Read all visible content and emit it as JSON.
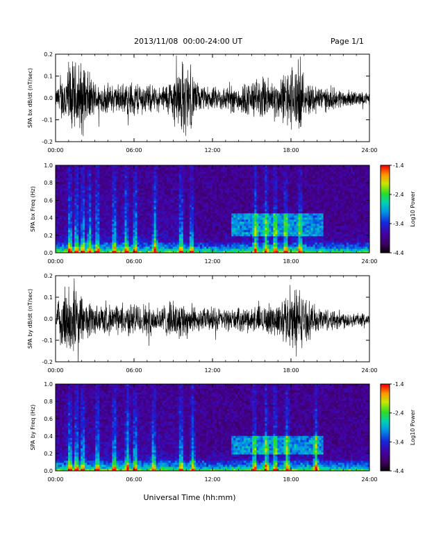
{
  "header": {
    "title": "2013/11/08  00:00-24:00 UT",
    "page": "Page 1/1"
  },
  "xlabel": "Universal Time (hh:mm)",
  "chart_data": [
    {
      "type": "line",
      "ylabel": "SPA bx dB/dt (nT/sec)",
      "xlim": [
        0,
        24
      ],
      "ylim": [
        -0.2,
        0.2
      ],
      "xticklabels": [
        "00:00",
        "06:00",
        "12:00",
        "18:00",
        "24:00"
      ],
      "yticklabels": [
        "-0.2",
        "-0.1",
        "0.0",
        "0.1",
        "0.2"
      ],
      "envelope": {
        "x": [
          0,
          1,
          1.5,
          2,
          3,
          4,
          5,
          6,
          7,
          8,
          9,
          9.5,
          10,
          11,
          12,
          13,
          14,
          15,
          16,
          17,
          18,
          18.5,
          19,
          20,
          21,
          22,
          23,
          24
        ],
        "amplitude": [
          0.04,
          0.2,
          0.2,
          0.2,
          0.09,
          0.08,
          0.08,
          0.1,
          0.08,
          0.06,
          0.12,
          0.2,
          0.2,
          0.07,
          0.06,
          0.07,
          0.08,
          0.1,
          0.12,
          0.1,
          0.18,
          0.2,
          0.1,
          0.08,
          0.06,
          0.05,
          0.04,
          0.03
        ]
      }
    },
    {
      "type": "heatmap",
      "ylabel": "SPA bx Freq (Hz)",
      "xlim": [
        0,
        24
      ],
      "ylim": [
        0,
        1
      ],
      "yticklabels": [
        "0.0",
        "0.2",
        "0.4",
        "0.6",
        "0.8",
        "1.0"
      ],
      "colorbar": {
        "label": "Log10 Power",
        "range": [
          -4.4,
          -1.4
        ],
        "ticks": [
          "-1.4",
          "-2.4",
          "-3.4",
          "-4.4"
        ]
      },
      "bursts": [
        1.1,
        1.6,
        2.1,
        2.6,
        3.2,
        4.5,
        5.4,
        6.1,
        7.6,
        9.6,
        10.4,
        15.3,
        16.1,
        16.8,
        17.6,
        18.7
      ],
      "feature_band": {
        "x": [
          13.5,
          20.5
        ],
        "freq": [
          0.2,
          0.45
        ]
      }
    },
    {
      "type": "line",
      "ylabel": "SPA by dB/dt (nT/sec)",
      "xlim": [
        0,
        24
      ],
      "ylim": [
        -0.2,
        0.2
      ],
      "xticklabels": [
        "00:00",
        "06:00",
        "12:00",
        "18:00",
        "24:00"
      ],
      "yticklabels": [
        "-0.2",
        "-0.1",
        "0.0",
        "0.1",
        "0.2"
      ],
      "envelope": {
        "x": [
          0,
          0.7,
          1,
          1.5,
          2,
          3,
          4,
          5,
          6,
          7,
          8,
          9,
          10,
          11,
          12,
          13,
          14,
          15,
          16,
          17,
          18,
          18.5,
          19,
          20,
          21,
          22,
          23,
          24
        ],
        "amplitude": [
          0.05,
          0.2,
          0.2,
          0.2,
          0.12,
          0.09,
          0.08,
          0.08,
          0.09,
          0.09,
          0.08,
          0.1,
          0.1,
          0.06,
          0.07,
          0.06,
          0.06,
          0.07,
          0.08,
          0.09,
          0.16,
          0.2,
          0.12,
          0.07,
          0.06,
          0.05,
          0.04,
          0.03
        ]
      }
    },
    {
      "type": "heatmap",
      "ylabel": "SPA by Freq (Hz)",
      "xlim": [
        0,
        24
      ],
      "ylim": [
        0,
        1
      ],
      "yticklabels": [
        "0.0",
        "0.2",
        "0.4",
        "0.6",
        "0.8",
        "1.0"
      ],
      "colorbar": {
        "label": "Log10 Power",
        "range": [
          -4.4,
          -1.4
        ],
        "ticks": [
          "-1.4",
          "-2.4",
          "-3.4",
          "-4.4"
        ]
      },
      "bursts": [
        1.1,
        1.6,
        2.1,
        3.2,
        4.5,
        5.5,
        6.1,
        7.5,
        9.6,
        10.5,
        15.2,
        16.1,
        16.8,
        17.7,
        19.9
      ],
      "feature_band": {
        "x": [
          13.5,
          20.5
        ],
        "freq": [
          0.2,
          0.4
        ]
      }
    }
  ]
}
